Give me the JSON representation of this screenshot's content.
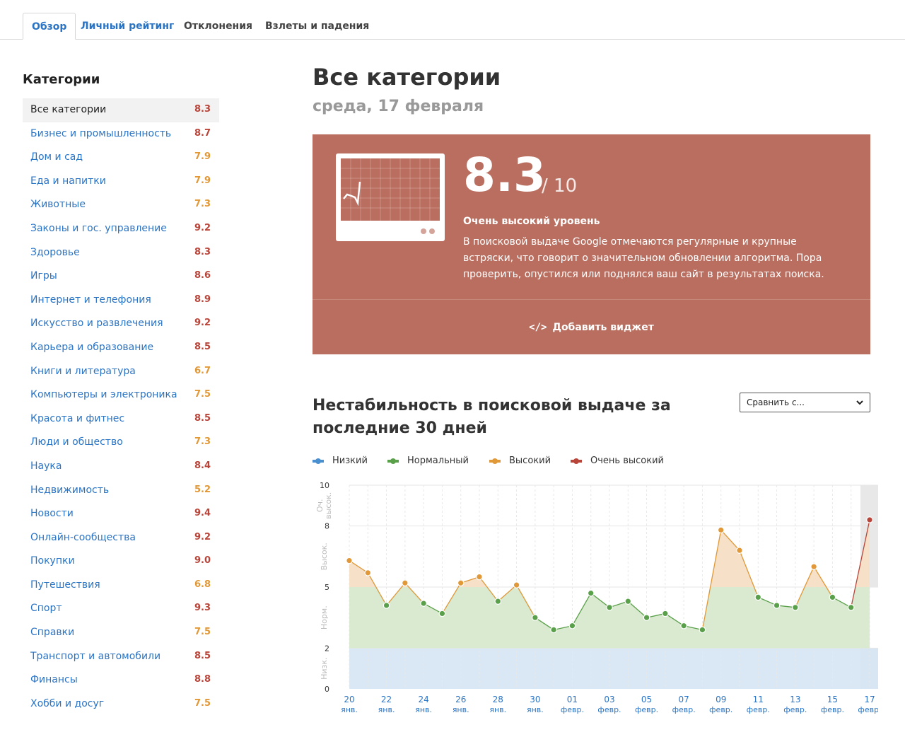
{
  "tabs": [
    {
      "label": "Обзор",
      "active": true
    },
    {
      "label": "Личный рейтинг"
    },
    {
      "label": "Отклонения"
    },
    {
      "label": "Взлеты и падения"
    }
  ],
  "sidebar": {
    "title": "Категории",
    "items": [
      {
        "name": "Все категории",
        "value": "8.3",
        "selected": true
      },
      {
        "name": "Бизнес и промышленность",
        "value": "8.7"
      },
      {
        "name": "Дом и сад",
        "value": "7.9"
      },
      {
        "name": "Еда и напитки",
        "value": "7.9"
      },
      {
        "name": "Животные",
        "value": "7.3"
      },
      {
        "name": "Законы и гос. управление",
        "value": "9.2"
      },
      {
        "name": "Здоровье",
        "value": "8.3"
      },
      {
        "name": "Игры",
        "value": "8.6"
      },
      {
        "name": "Интернет и телефония",
        "value": "8.9"
      },
      {
        "name": "Искусство и развлечения",
        "value": "9.2"
      },
      {
        "name": "Карьера и образование",
        "value": "8.5"
      },
      {
        "name": "Книги и литература",
        "value": "6.7"
      },
      {
        "name": "Компьютеры и электроника",
        "value": "7.5"
      },
      {
        "name": "Красота и фитнес",
        "value": "8.5"
      },
      {
        "name": "Люди и общество",
        "value": "7.3"
      },
      {
        "name": "Наука",
        "value": "8.4"
      },
      {
        "name": "Недвижимость",
        "value": "5.2"
      },
      {
        "name": "Новости",
        "value": "9.4"
      },
      {
        "name": "Онлайн-сообщества",
        "value": "9.2"
      },
      {
        "name": "Покупки",
        "value": "9.0"
      },
      {
        "name": "Путешествия",
        "value": "6.8"
      },
      {
        "name": "Спорт",
        "value": "9.3"
      },
      {
        "name": "Справки",
        "value": "7.5"
      },
      {
        "name": "Транспорт и автомобили",
        "value": "8.5"
      },
      {
        "name": "Финансы",
        "value": "8.8"
      },
      {
        "name": "Хобби и досуг",
        "value": "7.5"
      }
    ]
  },
  "main": {
    "title": "Все категории",
    "subtitle": "среда, 17 февраля"
  },
  "card": {
    "score": "8.3",
    "max": "/ 10",
    "level": "Очень высокий уровень",
    "description": "В поисковой выдаче Google отмечаются регулярные и крупные встряски, что говорит о значительном обновлении алгоритма. Пора проверить, опустился или поднялся ваш сайт в результатах поиска.",
    "widget_icon": "</>",
    "widget_label": "Добавить виджет"
  },
  "chart_section": {
    "title": "Нестабильность в поисковой выдаче за последние 30 дней",
    "compare_label": "Сравнить с...",
    "legend": [
      {
        "label": "Низкий",
        "color": "#4a8fd0"
      },
      {
        "label": "Нормальный",
        "color": "#5aa04a"
      },
      {
        "label": "Высокий",
        "color": "#e09838"
      },
      {
        "label": "Очень высокий",
        "color": "#b8453a"
      }
    ]
  },
  "chart_data": {
    "type": "line",
    "ylim": [
      0,
      10
    ],
    "yticks": [
      "0",
      "2",
      "5",
      "8",
      "10"
    ],
    "band_labels": [
      "Низк.",
      "Норм.",
      "Высок.",
      "Оч. высок."
    ],
    "xticks": [
      {
        "day": "20",
        "month": "янв."
      },
      {
        "day": "22",
        "month": "янв."
      },
      {
        "day": "24",
        "month": "янв."
      },
      {
        "day": "26",
        "month": "янв."
      },
      {
        "day": "28",
        "month": "янв."
      },
      {
        "day": "30",
        "month": "янв."
      },
      {
        "day": "01",
        "month": "февр."
      },
      {
        "day": "03",
        "month": "февр."
      },
      {
        "day": "05",
        "month": "февр."
      },
      {
        "day": "07",
        "month": "февр."
      },
      {
        "day": "09",
        "month": "февр."
      },
      {
        "day": "11",
        "month": "февр."
      },
      {
        "day": "13",
        "month": "февр."
      },
      {
        "day": "15",
        "month": "февр."
      },
      {
        "day": "17",
        "month": "февр."
      }
    ],
    "x": [
      "20 янв.",
      "21 янв.",
      "22 янв.",
      "23 янв.",
      "24 янв.",
      "25 янв.",
      "26 янв.",
      "27 янв.",
      "28 янв.",
      "29 янв.",
      "30 янв.",
      "31 янв.",
      "01 февр.",
      "02 февр.",
      "03 февр.",
      "04 февр.",
      "05 февр.",
      "06 февр.",
      "07 февр.",
      "08 февр.",
      "09 февр.",
      "10 февр.",
      "11 февр.",
      "12 февр.",
      "13 февр.",
      "14 февр.",
      "15 февр.",
      "16 февр.",
      "17 февр."
    ],
    "values": [
      6.3,
      5.7,
      4.1,
      5.2,
      4.2,
      3.7,
      5.2,
      5.5,
      4.3,
      5.1,
      3.5,
      2.9,
      3.1,
      4.7,
      4.0,
      4.3,
      3.5,
      3.7,
      3.1,
      2.9,
      7.8,
      6.8,
      4.5,
      4.1,
      4.0,
      6.0,
      4.5,
      4.0,
      8.3
    ],
    "highlight_last": true
  }
}
